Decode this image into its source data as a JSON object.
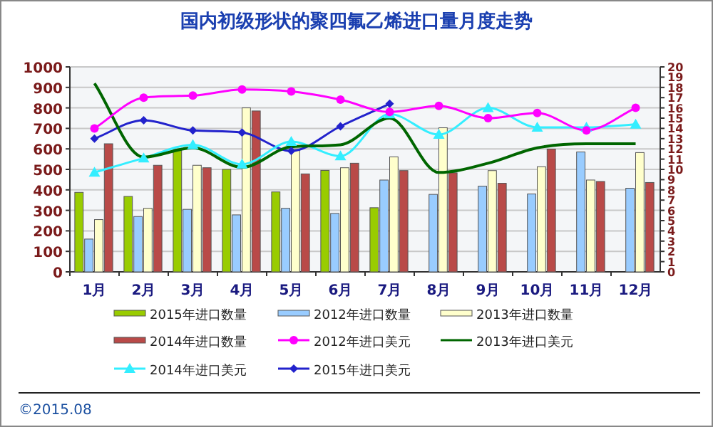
{
  "chart_data": {
    "type": "bar",
    "title": "国内初级形状的聚四氟乙烯进口量月度走势",
    "categories": [
      "1月",
      "2月",
      "3月",
      "4月",
      "5月",
      "6月",
      "7月",
      "8月",
      "9月",
      "10月",
      "11月",
      "12月"
    ],
    "ylim": [
      0,
      1000
    ],
    "yticks": [
      0,
      100,
      200,
      300,
      400,
      500,
      600,
      700,
      800,
      900,
      1000
    ],
    "y2lim": [
      0,
      20
    ],
    "y2ticks": [
      0,
      1,
      2,
      3,
      4,
      5,
      6,
      7,
      8,
      9,
      10,
      11,
      12,
      13,
      14,
      15,
      16,
      17,
      18,
      19,
      20
    ],
    "grid": "y",
    "legend": "bottom",
    "series": [
      {
        "name": "2015年进口数量",
        "color": "#99cc00",
        "values": [
          388,
          368,
          600,
          500,
          390,
          495,
          313,
          null,
          null,
          null,
          null,
          null
        ]
      },
      {
        "name": "2012年进口数量",
        "color": "#99ccff",
        "values": [
          160,
          270,
          305,
          278,
          310,
          285,
          448,
          378,
          418,
          380,
          585,
          408
        ]
      },
      {
        "name": "2013年进口数量",
        "color": "#ffffcc",
        "values": [
          255,
          310,
          520,
          800,
          600,
          508,
          561,
          703,
          494,
          513,
          448,
          582
        ]
      },
      {
        "name": "2014年进口数量",
        "color": "#b94a48",
        "values": [
          625,
          520,
          508,
          785,
          478,
          530,
          494,
          483,
          432,
          599,
          441,
          436
        ]
      },
      {
        "name": "2012年进口美元",
        "type": "line",
        "axis": "y2",
        "marker": "circle",
        "color": "#ff00ff",
        "values": [
          14.0,
          17.0,
          17.2,
          17.8,
          17.6,
          16.8,
          15.6,
          16.2,
          15.0,
          15.5,
          13.8,
          16.0
        ]
      },
      {
        "name": "2013年进口美元",
        "type": "line",
        "axis": "y2",
        "marker": "none",
        "color": "#006600",
        "values": [
          18.4,
          11.2,
          12.1,
          10.2,
          12.2,
          12.4,
          15.0,
          9.7,
          10.6,
          12.1,
          12.5,
          12.5
        ]
      },
      {
        "name": "2014年进口美元",
        "type": "line",
        "axis": "y2",
        "marker": "triangle",
        "color": "#33eeff",
        "values": [
          9.7,
          11.1,
          12.4,
          10.5,
          12.7,
          11.3,
          15.4,
          13.4,
          16.0,
          14.1,
          14.1,
          14.4
        ]
      },
      {
        "name": "2015年进口美元",
        "type": "line",
        "axis": "y2",
        "marker": "diamond",
        "color": "#2222cc",
        "values": [
          13.0,
          14.8,
          13.8,
          13.6,
          11.8,
          14.2,
          16.4,
          null,
          null,
          null,
          null,
          null
        ]
      }
    ],
    "annotations": [
      "©2015.08"
    ]
  }
}
